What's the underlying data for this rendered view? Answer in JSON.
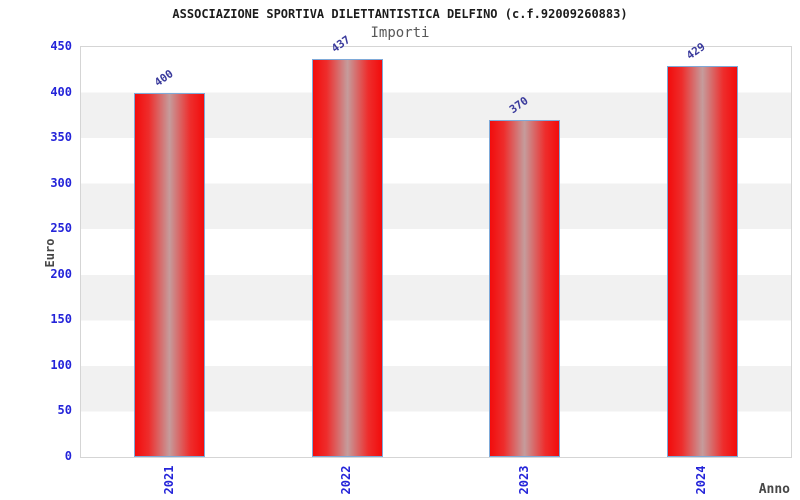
{
  "chart_data": {
    "type": "bar",
    "title": "ASSOCIAZIONE SPORTIVA DILETTANTISTICA DELFINO (c.f.92009260883)",
    "subtitle": "Importi",
    "xlabel": "Anno",
    "ylabel": "Euro",
    "categories": [
      "2021",
      "2022",
      "2023",
      "2024"
    ],
    "values": [
      400,
      437,
      370,
      429
    ],
    "ylim": [
      0,
      450
    ],
    "yticks": [
      0,
      50,
      100,
      150,
      200,
      250,
      300,
      350,
      400,
      450
    ],
    "grid": "horizontal-bands-alternating",
    "legend_position": "none",
    "colors": {
      "bar_fill_edge": "#f20c0c",
      "bar_fill_center": "#c59c9c",
      "bar_border": "#7ea9d8",
      "tick_label": "#2424d9",
      "value_label": "#3a3a9c",
      "axis_title": "#474747",
      "title": "#1c1c1c",
      "subtitle": "#585858",
      "band_gray": "#f1f1f1",
      "plot_border": "#d5d5d5"
    }
  }
}
